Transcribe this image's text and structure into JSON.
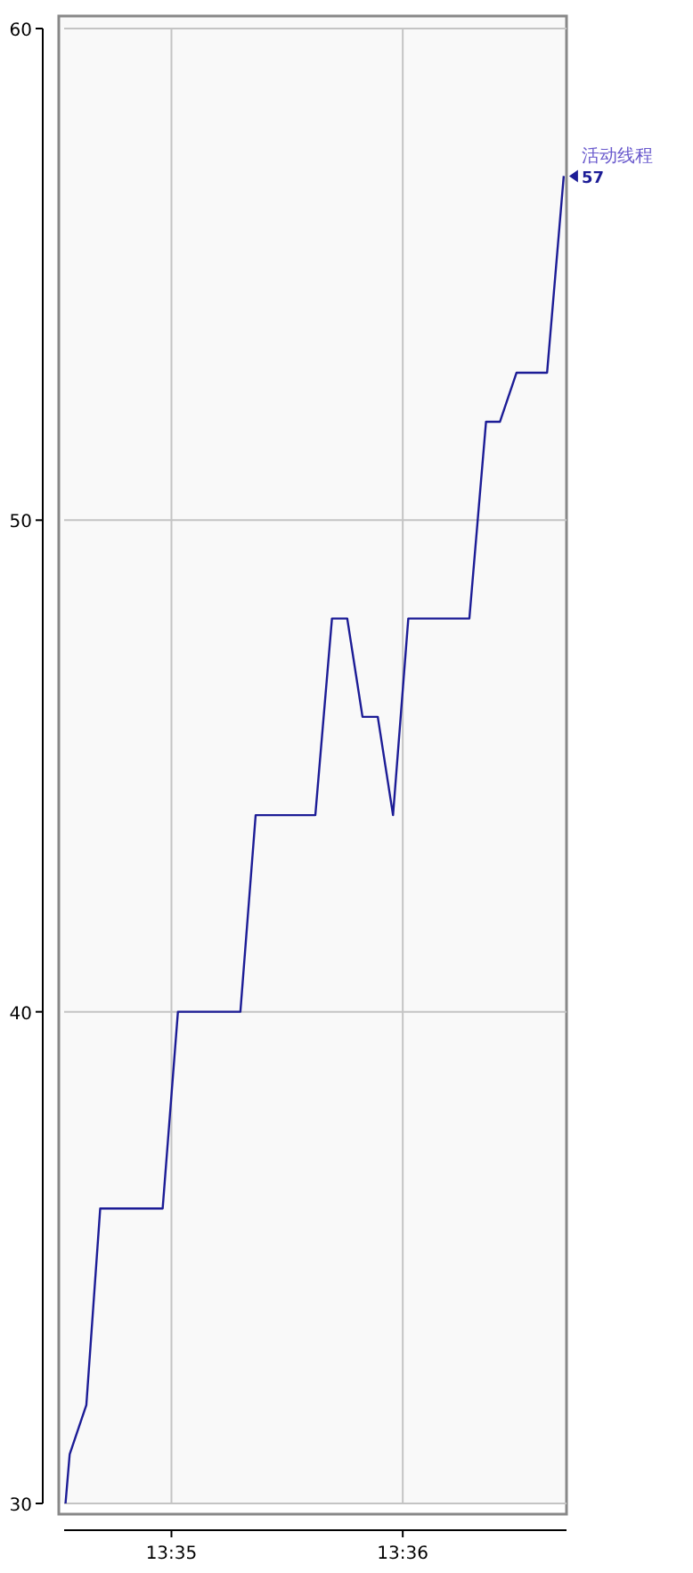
{
  "chart_data": {
    "type": "line",
    "x": [
      13.5757,
      13.576,
      13.5772,
      13.5782,
      13.5827,
      13.5838,
      13.5883,
      13.5894,
      13.5937,
      13.5949,
      13.596,
      13.5971,
      13.5982,
      13.5993,
      13.6004,
      13.6048,
      13.606,
      13.607,
      13.6082,
      13.6104,
      13.6116
    ],
    "series": [
      {
        "name": "活动线程",
        "color": "#1c1c96",
        "values": [
          30,
          31,
          32,
          36,
          36,
          40,
          40,
          44,
          44,
          48,
          48,
          46,
          46,
          44,
          48,
          48,
          52,
          52,
          53,
          53,
          57
        ],
        "value_labels": [
          null,
          null,
          null,
          null,
          null,
          null,
          null,
          null,
          null,
          null,
          null,
          null,
          null,
          null,
          null,
          null,
          null,
          null,
          null,
          null,
          "57"
        ]
      }
    ],
    "xlim": [
      13.5756,
      13.6118
    ],
    "xticks": [
      {
        "value": 13.583333,
        "label": "13:35"
      },
      {
        "value": 13.6,
        "label": "13:36"
      }
    ],
    "ylim": [
      30,
      60
    ],
    "yticks": [
      30,
      40,
      50,
      60
    ],
    "grid": true,
    "marker": "none",
    "line_style": "solid"
  }
}
